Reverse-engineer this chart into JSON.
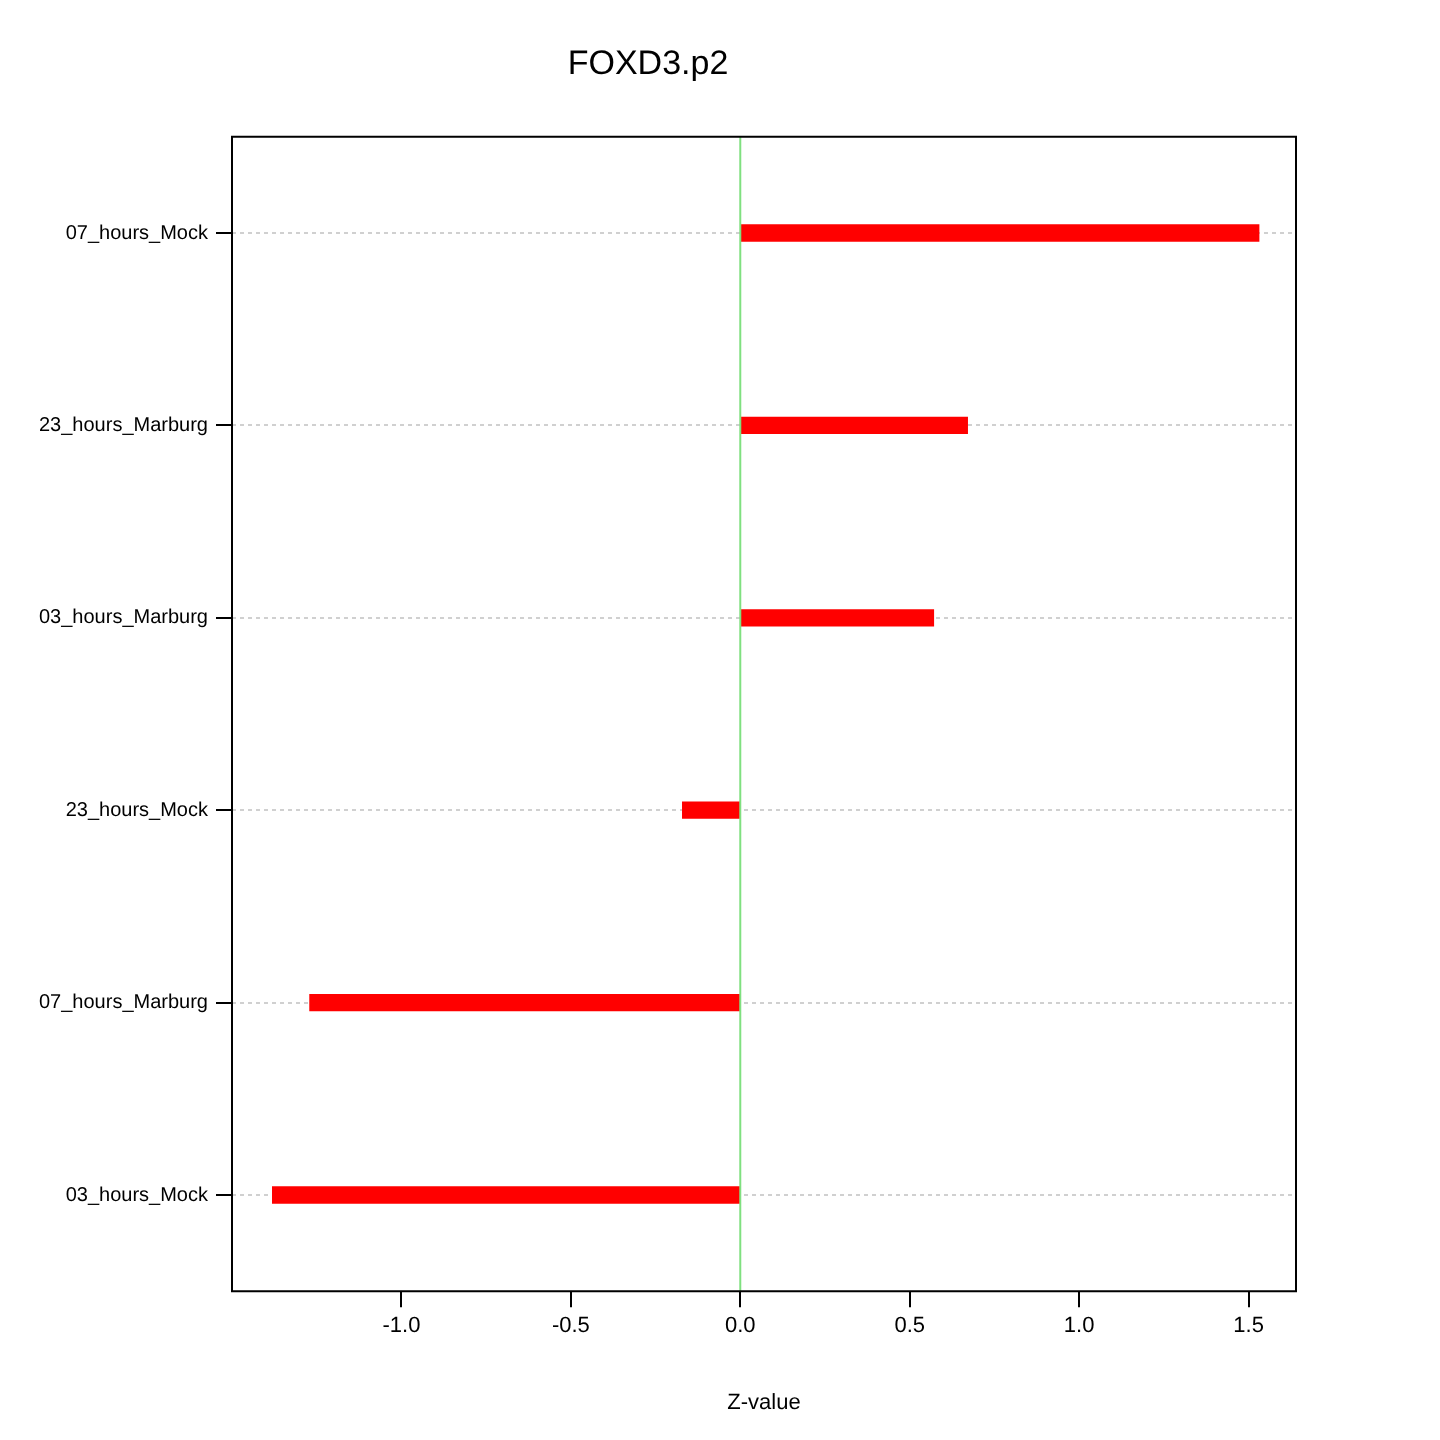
{
  "chart_data": {
    "type": "bar",
    "orientation": "horizontal",
    "title": "FOXD3.p2",
    "xlabel": "Z-value",
    "categories": [
      "07_hours_Mock",
      "23_hours_Marburg",
      "03_hours_Marburg",
      "23_hours_Mock",
      "07_hours_Marburg",
      "03_hours_Mock"
    ],
    "values": [
      1.53,
      0.67,
      0.57,
      -0.17,
      -1.27,
      -1.38
    ],
    "color": "#ff0000",
    "xlim": [
      -1.5,
      1.64
    ],
    "xticks": [
      {
        "value": -1,
        "label": "-1.0"
      },
      {
        "value": -0.5,
        "label": "-0.5"
      },
      {
        "value": 0,
        "label": "0.0"
      },
      {
        "value": 0.5,
        "label": "0.5"
      },
      {
        "value": 1,
        "label": "1.0"
      },
      {
        "value": 1.5,
        "label": "1.5"
      }
    ],
    "ref_lines": [
      {
        "axis": "x",
        "value": 0,
        "color": "#80e080"
      }
    ],
    "grid": "y",
    "legend": false
  }
}
